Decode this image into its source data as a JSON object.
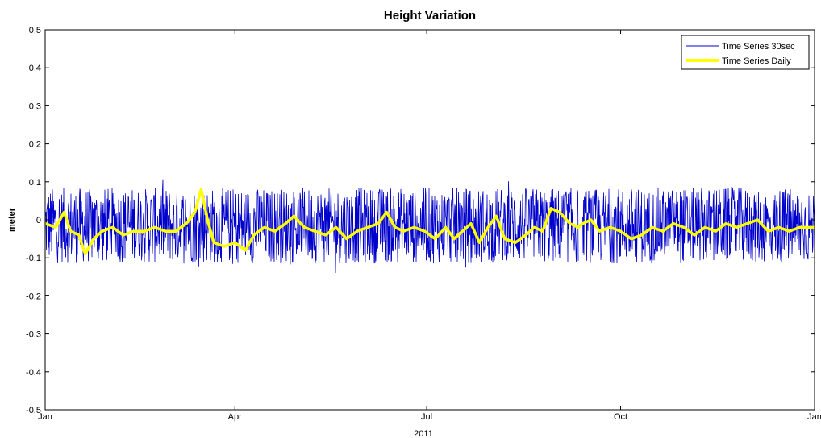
{
  "chart_data": {
    "type": "line",
    "title": "Height Variation",
    "xlabel": "2011",
    "ylabel": "meter",
    "x_range": [
      "2011-01-01",
      "2012-01-01"
    ],
    "ylim": [
      -0.5,
      0.5
    ],
    "x_ticks": [
      {
        "date": "2011-01-01",
        "label": "Jan"
      },
      {
        "date": "2011-04-01",
        "label": "Apr"
      },
      {
        "date": "2011-07-01",
        "label": "Jul"
      },
      {
        "date": "2011-10-01",
        "label": "Oct"
      },
      {
        "date": "2012-01-01",
        "label": "Jan"
      }
    ],
    "y_ticks": [
      -0.5,
      -0.4,
      -0.3,
      -0.2,
      -0.1,
      0,
      0.1,
      0.2,
      0.3,
      0.4,
      0.5
    ],
    "y_tick_labels": [
      "-0.5",
      "-0.4",
      "-0.3",
      "-0.2",
      "-0.1",
      "0",
      "0.1",
      "0.2",
      "0.3",
      "0.4",
      "0.5"
    ],
    "grid": false,
    "legend_position": "top-right",
    "series": [
      {
        "name": "Time Series 30sec",
        "color": "#0000cc",
        "style": "thin-noisy",
        "segments": [
          {
            "start": "2011-01-01",
            "end": "2011-09-11"
          },
          {
            "start": "2011-09-13",
            "end": "2012-01-01"
          }
        ],
        "typical_range": [
          -0.1,
          0.1
        ],
        "mean": -0.015
      },
      {
        "name": "Time Series Daily",
        "color": "#ffff00",
        "style": "thick",
        "points": [
          [
            "2011-01-01",
            -0.01
          ],
          [
            "2011-01-06",
            -0.02
          ],
          [
            "2011-01-10",
            0.02
          ],
          [
            "2011-01-13",
            -0.03
          ],
          [
            "2011-01-17",
            -0.04
          ],
          [
            "2011-01-20",
            -0.09
          ],
          [
            "2011-01-24",
            -0.05
          ],
          [
            "2011-01-28",
            -0.03
          ],
          [
            "2011-02-02",
            -0.02
          ],
          [
            "2011-02-07",
            -0.04
          ],
          [
            "2011-02-12",
            -0.03
          ],
          [
            "2011-02-17",
            -0.03
          ],
          [
            "2011-02-22",
            -0.02
          ],
          [
            "2011-02-27",
            -0.03
          ],
          [
            "2011-03-04",
            -0.03
          ],
          [
            "2011-03-09",
            -0.01
          ],
          [
            "2011-03-13",
            0.02
          ],
          [
            "2011-03-16",
            0.08
          ],
          [
            "2011-03-19",
            0.0
          ],
          [
            "2011-03-22",
            -0.06
          ],
          [
            "2011-03-27",
            -0.07
          ],
          [
            "2011-04-01",
            -0.06
          ],
          [
            "2011-04-06",
            -0.08
          ],
          [
            "2011-04-10",
            -0.04
          ],
          [
            "2011-04-15",
            -0.02
          ],
          [
            "2011-04-20",
            -0.03
          ],
          [
            "2011-04-25",
            -0.01
          ],
          [
            "2011-04-29",
            0.01
          ],
          [
            "2011-05-04",
            -0.02
          ],
          [
            "2011-05-09",
            -0.03
          ],
          [
            "2011-05-14",
            -0.04
          ],
          [
            "2011-05-19",
            -0.02
          ],
          [
            "2011-05-24",
            -0.05
          ],
          [
            "2011-05-29",
            -0.03
          ],
          [
            "2011-06-03",
            -0.02
          ],
          [
            "2011-06-08",
            -0.01
          ],
          [
            "2011-06-12",
            0.02
          ],
          [
            "2011-06-16",
            -0.02
          ],
          [
            "2011-06-20",
            -0.03
          ],
          [
            "2011-06-25",
            -0.02
          ],
          [
            "2011-06-30",
            -0.03
          ],
          [
            "2011-07-05",
            -0.05
          ],
          [
            "2011-07-10",
            -0.02
          ],
          [
            "2011-07-14",
            -0.05
          ],
          [
            "2011-07-18",
            -0.03
          ],
          [
            "2011-07-22",
            -0.01
          ],
          [
            "2011-07-26",
            -0.06
          ],
          [
            "2011-07-30",
            -0.02
          ],
          [
            "2011-08-03",
            0.01
          ],
          [
            "2011-08-07",
            -0.05
          ],
          [
            "2011-08-12",
            -0.06
          ],
          [
            "2011-08-17",
            -0.04
          ],
          [
            "2011-08-21",
            -0.02
          ],
          [
            "2011-08-25",
            -0.03
          ],
          [
            "2011-08-29",
            0.03
          ],
          [
            "2011-09-02",
            0.02
          ],
          [
            "2011-09-07",
            -0.01
          ],
          [
            "2011-09-11",
            -0.02
          ],
          [
            "2011-09-13",
            -0.01
          ],
          [
            "2011-09-17",
            0.0
          ],
          [
            "2011-09-21",
            -0.03
          ],
          [
            "2011-09-26",
            -0.02
          ],
          [
            "2011-10-01",
            -0.03
          ],
          [
            "2011-10-06",
            -0.05
          ],
          [
            "2011-10-11",
            -0.04
          ],
          [
            "2011-10-16",
            -0.02
          ],
          [
            "2011-10-21",
            -0.03
          ],
          [
            "2011-10-26",
            -0.01
          ],
          [
            "2011-10-31",
            -0.02
          ],
          [
            "2011-11-05",
            -0.04
          ],
          [
            "2011-11-10",
            -0.02
          ],
          [
            "2011-11-15",
            -0.03
          ],
          [
            "2011-11-20",
            -0.01
          ],
          [
            "2011-11-25",
            -0.02
          ],
          [
            "2011-11-30",
            -0.01
          ],
          [
            "2011-12-05",
            0.0
          ],
          [
            "2011-12-10",
            -0.03
          ],
          [
            "2011-12-15",
            -0.02
          ],
          [
            "2011-12-20",
            -0.03
          ],
          [
            "2011-12-25",
            -0.02
          ],
          [
            "2012-01-01",
            -0.02
          ]
        ]
      }
    ]
  }
}
